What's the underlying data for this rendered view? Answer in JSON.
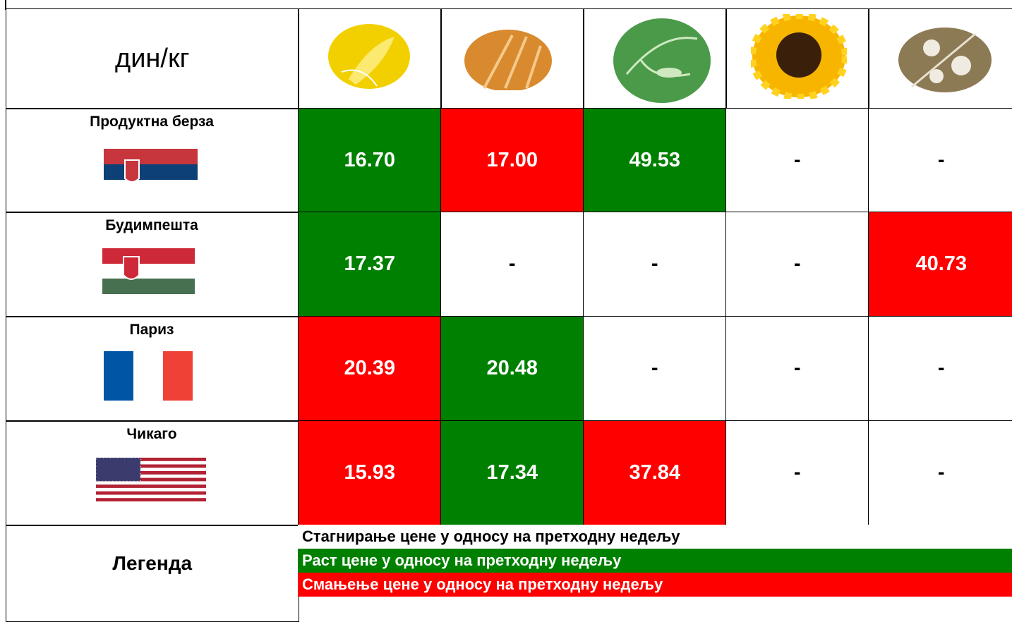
{
  "header": {
    "unit": "дин/кг"
  },
  "rows": [
    {
      "name": "Продуктна берза",
      "cells": [
        {
          "text": "16.70",
          "color": "#008000"
        },
        {
          "text": "17.00",
          "color": "#ff0000"
        },
        {
          "text": "49.53",
          "color": "#008000"
        },
        {
          "text": "-",
          "color": "#ffffff"
        },
        {
          "text": "-",
          "color": "#ffffff"
        }
      ]
    },
    {
      "name": "Будимпешта",
      "cells": [
        {
          "text": "17.37",
          "color": "#008000"
        },
        {
          "text": "-",
          "color": "#ffffff"
        },
        {
          "text": "-",
          "color": "#ffffff"
        },
        {
          "text": "-",
          "color": "#ffffff"
        },
        {
          "text": "40.73",
          "color": "#ff0000"
        }
      ]
    },
    {
      "name": "Париз",
      "cells": [
        {
          "text": "20.39",
          "color": "#ff0000"
        },
        {
          "text": "20.48",
          "color": "#008000"
        },
        {
          "text": "-",
          "color": "#ffffff"
        },
        {
          "text": "-",
          "color": "#ffffff"
        },
        {
          "text": "-",
          "color": "#ffffff"
        }
      ]
    },
    {
      "name": "Чикаго",
      "cells": [
        {
          "text": "15.93",
          "color": "#ff0000"
        },
        {
          "text": "17.34",
          "color": "#008000"
        },
        {
          "text": "37.84",
          "color": "#ff0000"
        },
        {
          "text": "-",
          "color": "#ffffff"
        },
        {
          "text": "-",
          "color": "#ffffff"
        }
      ]
    }
  ],
  "legend": {
    "title": "Легенда",
    "items": [
      {
        "text": "Стагнирање цене у односу на претходну недељу",
        "color": "#ffffff"
      },
      {
        "text": "Раст цене у односу на претходну недељу",
        "color": "#008000"
      },
      {
        "text": "Смањење цене у односу на претходну недељу",
        "color": "#ff0000"
      }
    ]
  }
}
